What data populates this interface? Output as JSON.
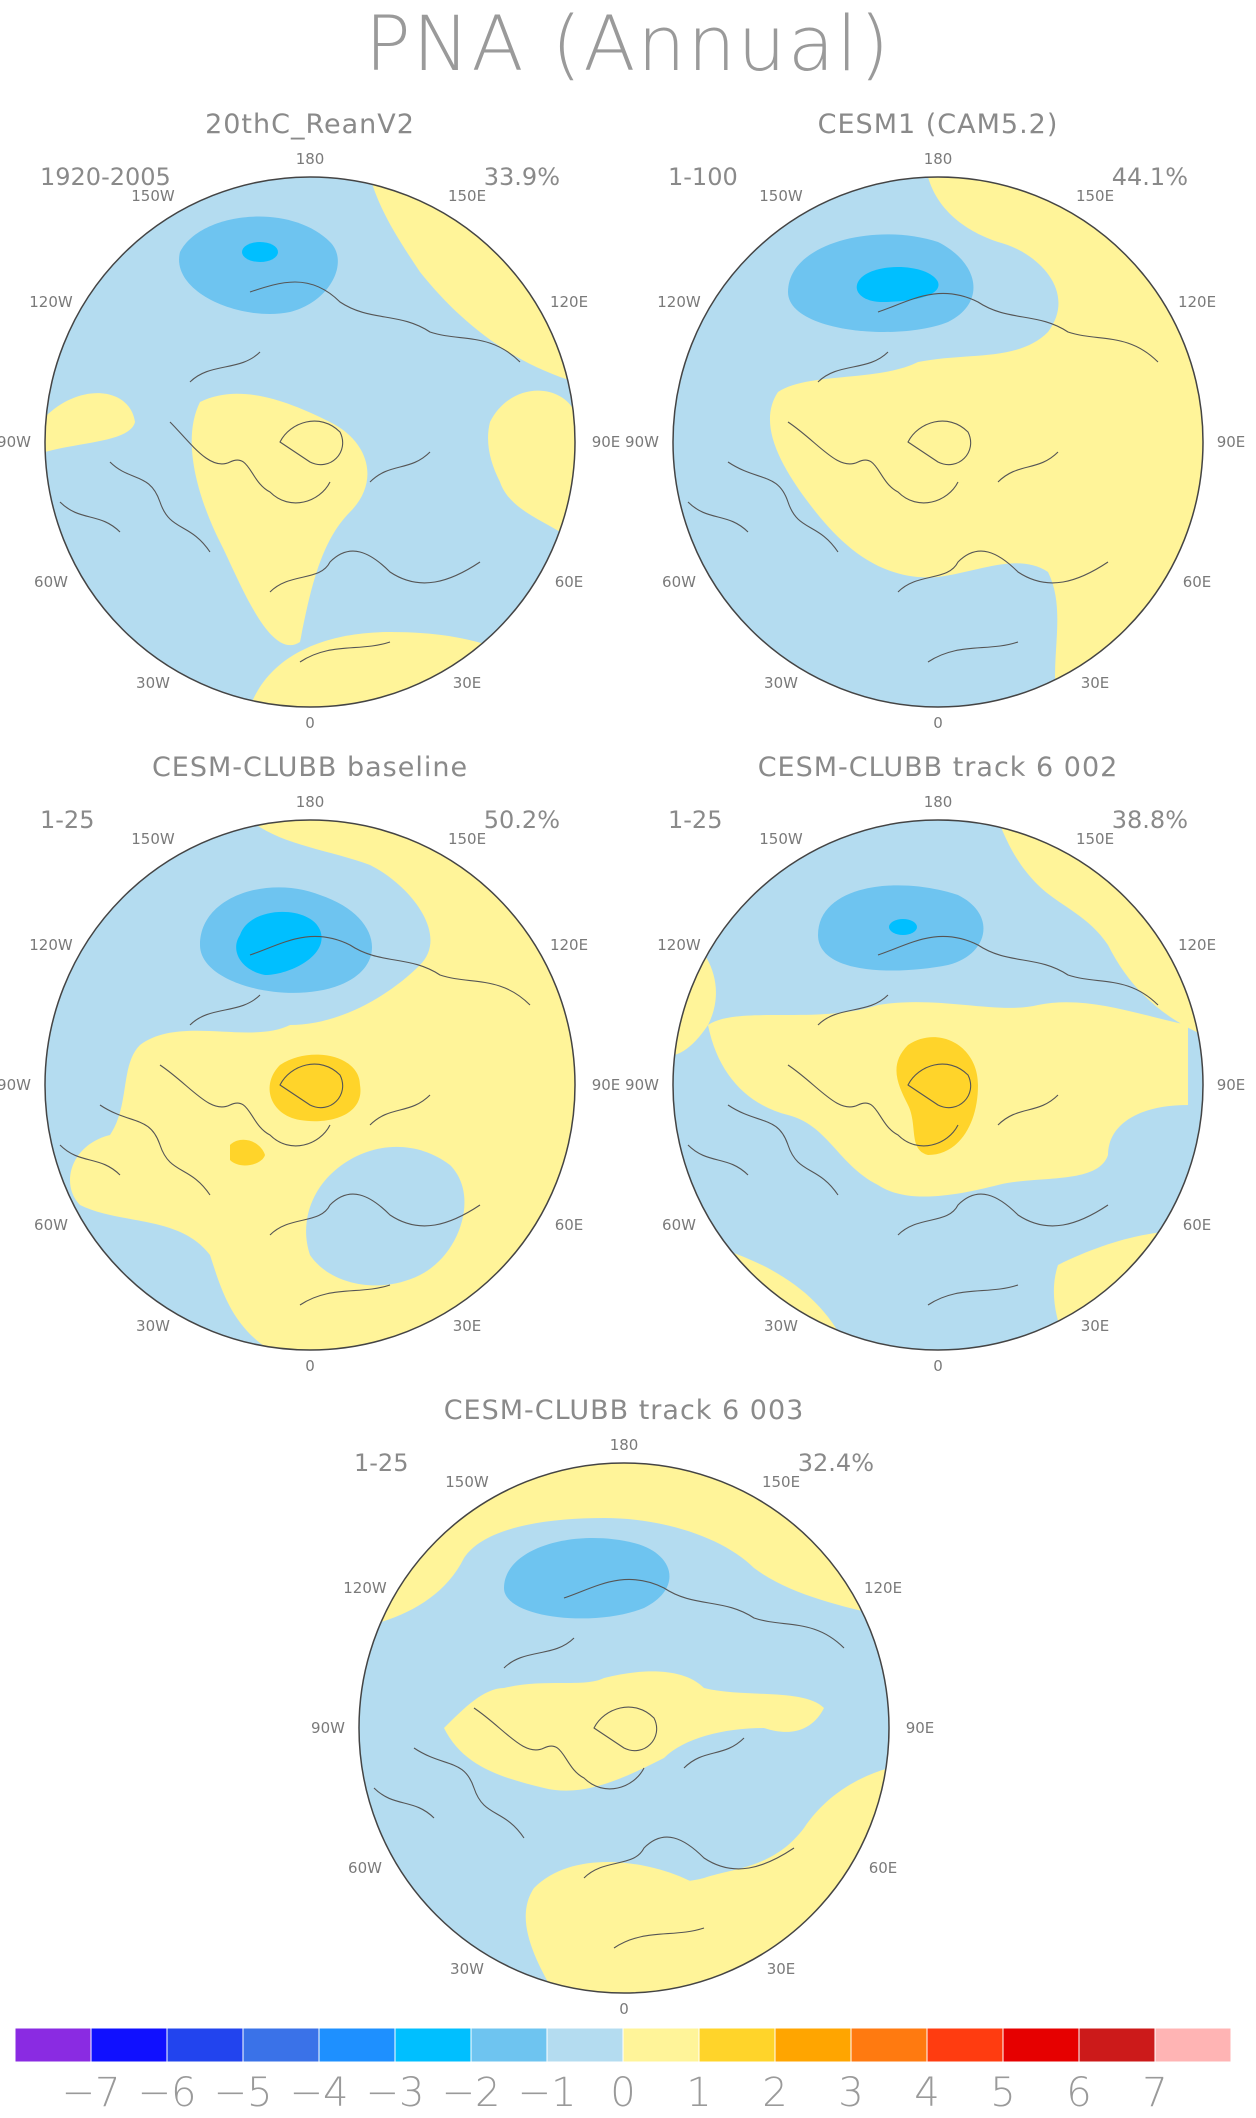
{
  "title": "PNA (Annual)",
  "colors": {
    "neg1": "#b4dcf0",
    "neg2": "#6ec4f0",
    "neg3": "#00bfff",
    "pos1": "#fff499",
    "pos2": "#ffd42a",
    "ocean_edge": "#555555"
  },
  "lon_labels": [
    "180",
    "150E",
    "120E",
    "90E",
    "60E",
    "30E",
    "0",
    "30W",
    "60W",
    "90W",
    "120W",
    "150W"
  ],
  "panels": [
    {
      "title": "20thC_ReanV2",
      "period": "1920-2005",
      "variance": "33.9%"
    },
    {
      "title": "CESM1 (CAM5.2)",
      "period": "1-100",
      "variance": "44.1%"
    },
    {
      "title": "CESM-CLUBB baseline",
      "period": "1-25",
      "variance": "50.2%"
    },
    {
      "title": "CESM-CLUBB track 6 002",
      "period": "1-25",
      "variance": "38.8%"
    },
    {
      "title": "CESM-CLUBB track 6 003",
      "period": "1-25",
      "variance": "32.4%"
    }
  ],
  "colorbar": {
    "labels": [
      "−7",
      "−6",
      "−5",
      "−4",
      "−3",
      "−2",
      "−1",
      "0",
      "1",
      "2",
      "3",
      "4",
      "5",
      "6",
      "7"
    ],
    "colors": [
      "#8a2be2",
      "#1010ff",
      "#2244ee",
      "#3a72e8",
      "#1e90ff",
      "#00bfff",
      "#6ec4f0",
      "#b4dcf0",
      "#fff499",
      "#ffd42a",
      "#ffa500",
      "#ff7a10",
      "#ff3c10",
      "#e60000",
      "#cc1a1a",
      "#ffb4b4"
    ]
  }
}
